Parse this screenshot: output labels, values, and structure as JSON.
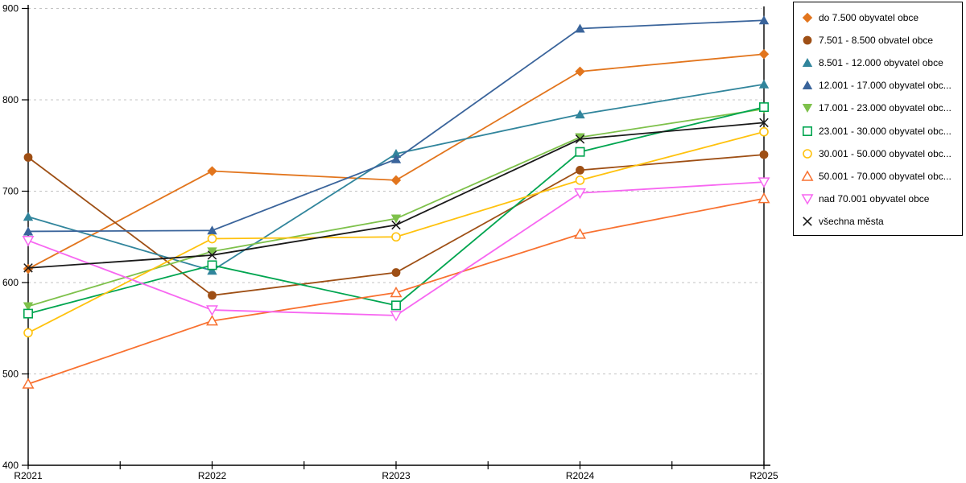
{
  "chart_data": {
    "type": "line",
    "title": "",
    "xlabel": "",
    "ylabel": "",
    "categories": [
      "R2021",
      "R2022",
      "R2023",
      "R2024",
      "R2025"
    ],
    "ylim": [
      400,
      900
    ],
    "yticks": [
      400,
      500,
      600,
      700,
      800,
      900
    ],
    "grid": "horizontal-dashed",
    "grid_color": "#c3c3c3",
    "axis_color": "#000000",
    "legend_position": "right",
    "series": [
      {
        "label": "do 7.500 obyvatel obce",
        "marker": "diamond",
        "color": "#E2751D",
        "values": [
          615,
          722,
          712,
          831,
          850
        ]
      },
      {
        "label": "7.501 - 8.500 obvatel obce",
        "marker": "circle",
        "color": "#9E4F15",
        "values": [
          737,
          586,
          611,
          723,
          740
        ]
      },
      {
        "label": "8.501 - 12.000 obyvatel obce",
        "marker": "triangle-up",
        "color": "#31859C",
        "values": [
          672,
          613,
          741,
          784,
          817
        ]
      },
      {
        "label": "12.001 - 17.000 obyvatel obc...",
        "marker": "triangle-up",
        "color": "#3A649B",
        "values": [
          656,
          657,
          735,
          878,
          887
        ]
      },
      {
        "label": "17.001 - 23.000 obyvatel obc...",
        "marker": "triangle-down",
        "color": "#7EC14B",
        "values": [
          574,
          634,
          670,
          759,
          790
        ]
      },
      {
        "label": "23.001 - 30.000 obyvatel obc...",
        "marker": "square-open",
        "color": "#00A550",
        "values": [
          566,
          619,
          575,
          743,
          792
        ]
      },
      {
        "label": "30.001 - 50.000 obyvatel obc...",
        "marker": "circle-open",
        "color": "#FFC20E",
        "values": [
          545,
          648,
          650,
          712,
          765
        ]
      },
      {
        "label": "50.001 - 70.000 obyvatel obc...",
        "marker": "triangle-up-open",
        "color": "#F87130",
        "values": [
          489,
          558,
          589,
          653,
          692
        ]
      },
      {
        "label": "nad 70.001 obyvatel obce",
        "marker": "triangle-down-open",
        "color": "#F767F1",
        "values": [
          646,
          570,
          564,
          698,
          710
        ]
      },
      {
        "label": "všechna města",
        "marker": "x-mark",
        "color": "#1A1A1A",
        "values": [
          616,
          630,
          663,
          757,
          775
        ]
      }
    ]
  }
}
